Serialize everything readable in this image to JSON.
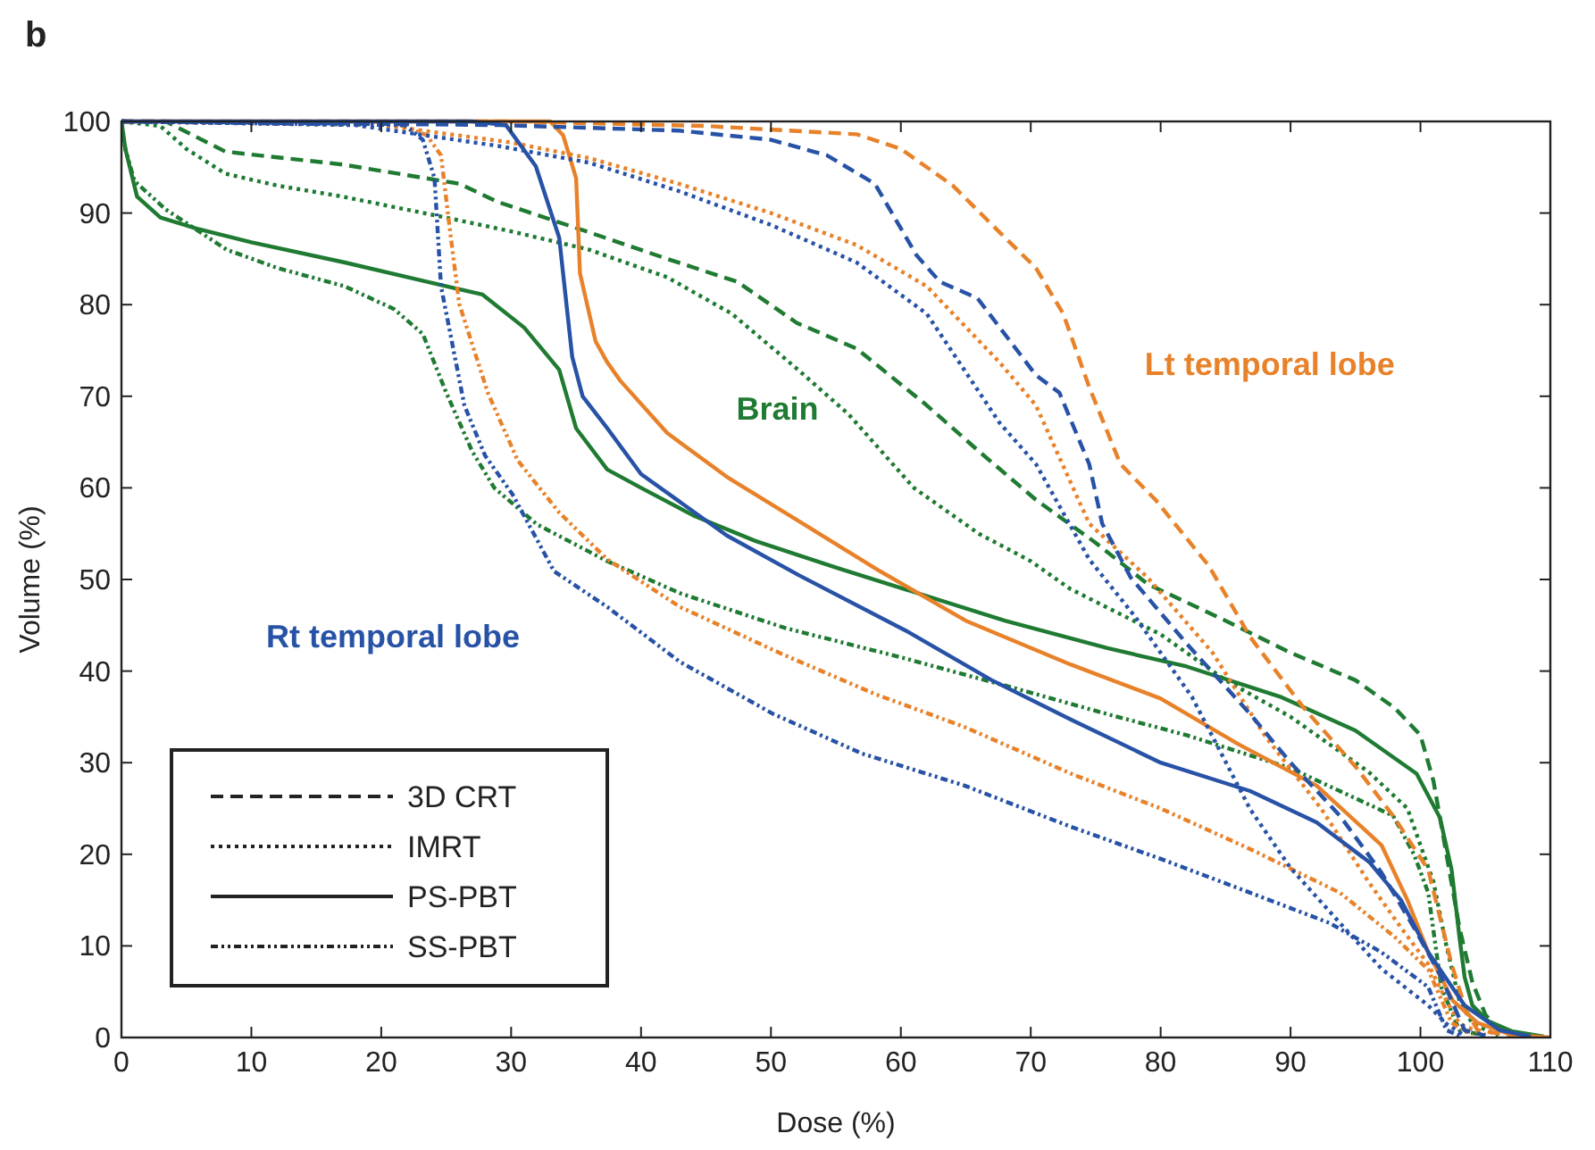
{
  "chart_data": {
    "type": "line",
    "title": "b",
    "xlabel": "Dose (%)",
    "ylabel": "Volume (%)",
    "xlim": [
      0,
      110
    ],
    "ylim": [
      0,
      100
    ],
    "xticks": [
      0,
      10,
      20,
      30,
      40,
      50,
      60,
      70,
      80,
      90,
      100,
      110
    ],
    "yticks": [
      0,
      10,
      20,
      30,
      40,
      50,
      60,
      70,
      80,
      90,
      100
    ],
    "grid": false,
    "marker": "none",
    "annotations": [
      "Brain",
      "Lt temporal lobe",
      "Rt temporal lobe",
      "3D CRT",
      "IMRT",
      "PS-PBT",
      "SS-PBT"
    ],
    "series": [
      {
        "color": "#1f7a32",
        "line_style": "dashed",
        "x": [
          0,
          3.4,
          8,
          17,
          26,
          29,
          36,
          42,
          47.4,
          52,
          56.6,
          62,
          66,
          70.4,
          75,
          79,
          85,
          90,
          95,
          98,
          100,
          101,
          102,
          103,
          104,
          105,
          106,
          108
        ],
        "values": [
          100,
          100,
          96.7,
          95.3,
          93.2,
          91.2,
          87.9,
          85,
          82.5,
          78,
          75.2,
          69,
          64,
          58.7,
          54,
          49.5,
          45.5,
          42,
          39,
          36,
          33,
          28,
          20,
          12,
          6,
          2.5,
          0.8,
          0.2
        ]
      },
      {
        "color": "#1f7a32",
        "line_style": "dotted",
        "x": [
          0,
          3,
          5,
          8,
          12,
          17,
          25,
          30,
          36,
          42,
          47,
          52,
          56,
          61,
          66,
          70,
          73,
          80,
          85,
          90,
          96,
          99,
          101,
          102,
          103,
          104,
          106
        ],
        "values": [
          100,
          99.5,
          97,
          94.3,
          93,
          91.8,
          89.5,
          88,
          86,
          83,
          79,
          73,
          68,
          60,
          55,
          52,
          49,
          44,
          39,
          35,
          29,
          25,
          17,
          10,
          4,
          1.5,
          0.2
        ]
      },
      {
        "color": "#1f7a32",
        "line_style": "solid",
        "x": [
          0,
          0.3,
          1.2,
          3,
          5.8,
          10,
          17.2,
          22,
          27.8,
          31,
          33.7,
          35,
          37.4,
          40,
          44,
          48.8,
          55,
          60.4,
          68,
          75.9,
          82,
          89.2,
          95,
          99.7,
          101.5,
          102.4,
          103,
          103.4,
          104,
          105.2,
          107,
          109.5
        ],
        "values": [
          100,
          97,
          91.8,
          89.5,
          88.3,
          86.8,
          84.6,
          83,
          81.1,
          77.5,
          72.9,
          66.5,
          62,
          60,
          57,
          54.2,
          51.3,
          48.9,
          45.5,
          42.5,
          40.5,
          37.2,
          33.5,
          28.8,
          24,
          18.3,
          11,
          6.6,
          3.5,
          1.8,
          0.7,
          0.1
        ]
      },
      {
        "color": "#1f7a32",
        "line_style": "dashdot",
        "x": [
          0,
          0.3,
          1,
          3.4,
          8.1,
          12,
          17.2,
          21,
          23.2,
          25,
          27,
          28.7,
          32,
          37.4,
          43,
          51.1,
          60,
          68.6,
          75.9,
          82,
          90,
          97.9,
          99.5,
          100.6,
          101.6,
          103,
          105
        ],
        "values": [
          100,
          97,
          93.5,
          90.4,
          86,
          84,
          82,
          79.5,
          76.8,
          70.4,
          64,
          60,
          56,
          52,
          48.5,
          44.7,
          41.5,
          38.2,
          35.3,
          33,
          29.4,
          24.2,
          20,
          15.8,
          5.5,
          0.8,
          0.2
        ]
      },
      {
        "color": "#e8822a",
        "line_style": "dashed",
        "x": [
          0,
          30,
          45,
          56.6,
          60,
          64,
          67.6,
          70.4,
          72.5,
          74.5,
          76.9,
          79.6,
          83.7,
          86.9,
          91,
          95.1,
          98,
          100.6,
          102.4,
          103.5,
          104.4,
          107
        ],
        "values": [
          100,
          100,
          99.5,
          98.6,
          97,
          93,
          87.9,
          84,
          79,
          71,
          62.6,
          58.7,
          51.5,
          43.7,
          36,
          29.4,
          24,
          18.3,
          8,
          3,
          0.8,
          0.2
        ]
      },
      {
        "color": "#e8822a",
        "line_style": "dotted",
        "x": [
          0,
          20,
          30,
          36,
          42.9,
          50,
          56.6,
          62,
          67.6,
          70.4,
          74.5,
          79,
          84,
          88,
          92.4,
          96,
          98.5,
          100.6,
          102,
          103,
          105
        ],
        "values": [
          100,
          99.6,
          97.7,
          96,
          93.2,
          90,
          86.5,
          82,
          73.7,
          69,
          56.1,
          50.2,
          42,
          33,
          24.9,
          17,
          12,
          8,
          4,
          1.5,
          0.3
        ]
      },
      {
        "color": "#e8822a",
        "line_style": "solid",
        "x": [
          0,
          33,
          34,
          35,
          35.3,
          36.5,
          37.4,
          38.4,
          42,
          46.6,
          52,
          58.4,
          65,
          73.1,
          80,
          86,
          92,
          97,
          99,
          100.6,
          102.5,
          104.4,
          107,
          110
        ],
        "values": [
          100,
          100,
          98.5,
          93.8,
          83.4,
          76,
          73.7,
          71.7,
          66,
          61.2,
          56.5,
          50.9,
          45.5,
          40.7,
          37,
          32,
          27.5,
          21,
          15,
          9.3,
          4,
          1.6,
          0.3,
          0
        ]
      },
      {
        "color": "#e8822a",
        "line_style": "dashdot",
        "x": [
          0,
          21.5,
          23.5,
          24.6,
          25.3,
          26,
          28.2,
          30.5,
          33.7,
          37.4,
          43,
          51.1,
          58,
          64.9,
          73.1,
          80,
          87,
          93.8,
          98,
          100.6,
          102.4,
          104
        ],
        "values": [
          100,
          99.6,
          98.5,
          96.3,
          88,
          80.1,
          70.4,
          63,
          57.3,
          52.2,
          47,
          41.7,
          37.5,
          33.9,
          28.8,
          25,
          20.5,
          15.8,
          11,
          7.4,
          1.6,
          0.3
        ]
      },
      {
        "color": "#2752a6",
        "line_style": "dashed",
        "x": [
          0,
          29.1,
          42.9,
          50,
          54.3,
          58,
          61.2,
          63,
          65.9,
          70.4,
          72.2,
          74.5,
          75.5,
          77.7,
          82,
          86.9,
          90,
          93.8,
          97,
          99.5,
          101.6,
          103.4,
          105
        ],
        "values": [
          100,
          99.6,
          99,
          98,
          96.3,
          93.2,
          85.4,
          82.5,
          80.7,
          72.3,
          70.4,
          62.6,
          56.1,
          50.2,
          43,
          35.3,
          30,
          24.2,
          18,
          12,
          6.6,
          0.8,
          0.2
        ]
      },
      {
        "color": "#2752a6",
        "line_style": "dotted",
        "x": [
          0,
          18,
          29.1,
          36,
          42.9,
          50,
          56.6,
          62,
          67.6,
          70.4,
          74.5,
          78,
          82.4,
          86.9,
          90,
          93.8,
          97,
          100.6,
          102,
          103.4
        ],
        "values": [
          100,
          99.6,
          97.3,
          95.5,
          92.4,
          88.7,
          84.6,
          79,
          67.1,
          62.6,
          52.2,
          46,
          37.2,
          24.9,
          18.5,
          12.5,
          7.5,
          3.5,
          1.5,
          0.2
        ]
      },
      {
        "color": "#2752a6",
        "line_style": "solid",
        "x": [
          0,
          27,
          29.6,
          31.9,
          33.7,
          34.7,
          35.5,
          37.4,
          40,
          46.6,
          52.1,
          60.4,
          67,
          73.1,
          80,
          86.9,
          92,
          96.1,
          98.5,
          100.6,
          103.4,
          106.1,
          108.5
        ],
        "values": [
          100,
          100,
          99.6,
          95.1,
          87.3,
          74.3,
          70,
          66.5,
          61.5,
          54.8,
          50.5,
          44.4,
          39,
          34.7,
          30,
          26.9,
          23.5,
          19.1,
          15,
          9.3,
          3.5,
          0.8,
          0.1
        ]
      },
      {
        "color": "#2752a6",
        "line_style": "dashdot",
        "x": [
          0,
          21.8,
          23.2,
          24.1,
          24.6,
          26.4,
          28,
          30.1,
          33.3,
          37.4,
          43,
          50.2,
          57,
          64.9,
          73.1,
          80,
          86.9,
          93,
          97,
          100.6,
          101.5,
          102,
          103
        ],
        "values": [
          100,
          99.6,
          98,
          93.8,
          82,
          69,
          63.5,
          59.3,
          50.9,
          47,
          41,
          35.3,
          31,
          27.5,
          23,
          19.5,
          15.8,
          12.5,
          9.3,
          5.5,
          2.5,
          0.8,
          0.2
        ]
      }
    ]
  }
}
